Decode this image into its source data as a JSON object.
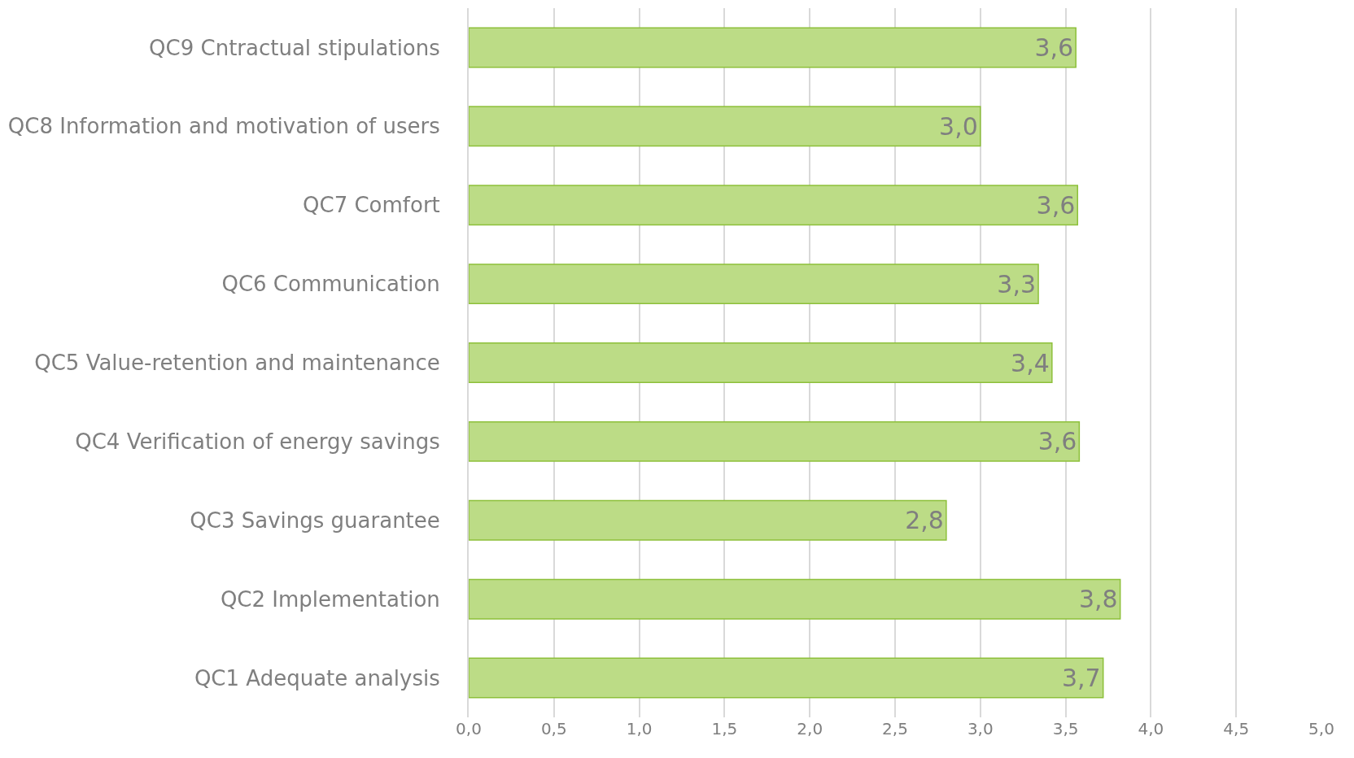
{
  "chart_data": {
    "type": "bar",
    "orientation": "horizontal",
    "categories": [
      "QC9 Cntractual stipulations",
      "QC8 Information and motivation of users",
      "QC7 Comfort",
      "QC6 Communication",
      "QC5 Value-retention and maintenance",
      "QC4 Verification of energy savings",
      "QC3 Savings guarantee",
      "QC2 Implementation",
      "QC1 Adequate analysis"
    ],
    "values": [
      3.56,
      3.0,
      3.57,
      3.34,
      3.42,
      3.58,
      2.8,
      3.82,
      3.72
    ],
    "value_labels": [
      "3,6",
      "3,0",
      "3,6",
      "3,3",
      "3,4",
      "3,6",
      "2,8",
      "3,8",
      "3,7"
    ],
    "color": "#bcdc86",
    "xlim": [
      0,
      5
    ],
    "xticks": [
      {
        "value": 0,
        "label": "0,0"
      },
      {
        "value": 0.5,
        "label": "0,5"
      },
      {
        "value": 1,
        "label": "1,0"
      },
      {
        "value": 1.5,
        "label": "1,5"
      },
      {
        "value": 2,
        "label": "2,0"
      },
      {
        "value": 2.5,
        "label": "2,5"
      },
      {
        "value": 3,
        "label": "3,0"
      },
      {
        "value": 3.5,
        "label": "3,5"
      },
      {
        "value": 4,
        "label": "4,0"
      },
      {
        "value": 4.5,
        "label": "4,5"
      },
      {
        "value": 5,
        "label": "5,0"
      }
    ],
    "grid": "x",
    "legend": false
  }
}
